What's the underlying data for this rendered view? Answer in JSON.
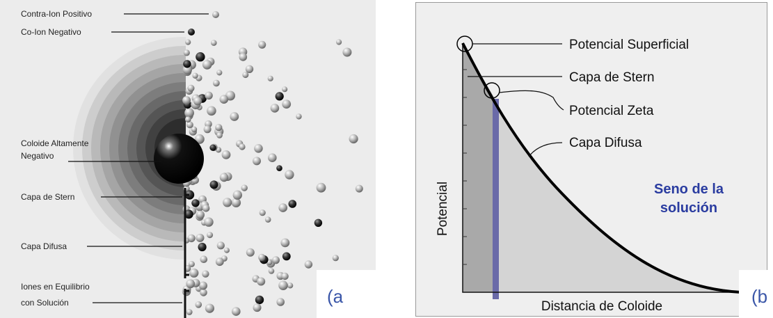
{
  "panel_a": {
    "tag": "(a",
    "labels": {
      "contra_ion": "Contra-Ion Positivo",
      "co_ion": "Co-Ion Negativo",
      "coloide": [
        "Coloide Altamente",
        "Negativo"
      ],
      "stern": "Capa de Stern",
      "difusa": "Capa Difusa",
      "equilibrio": [
        "Iones en Equilibrio",
        "con Solución"
      ]
    }
  },
  "panel_b": {
    "tag": "(b",
    "labels": {
      "superficial": "Potencial Superficial",
      "stern": "Capa de Stern",
      "zeta": "Potencial Zeta",
      "difusa": "Capa Difusa",
      "seno": [
        "Seno de la",
        "solución"
      ]
    },
    "y_axis_label": "Potencial",
    "x_axis_label": "Distancia de Coloide"
  }
}
